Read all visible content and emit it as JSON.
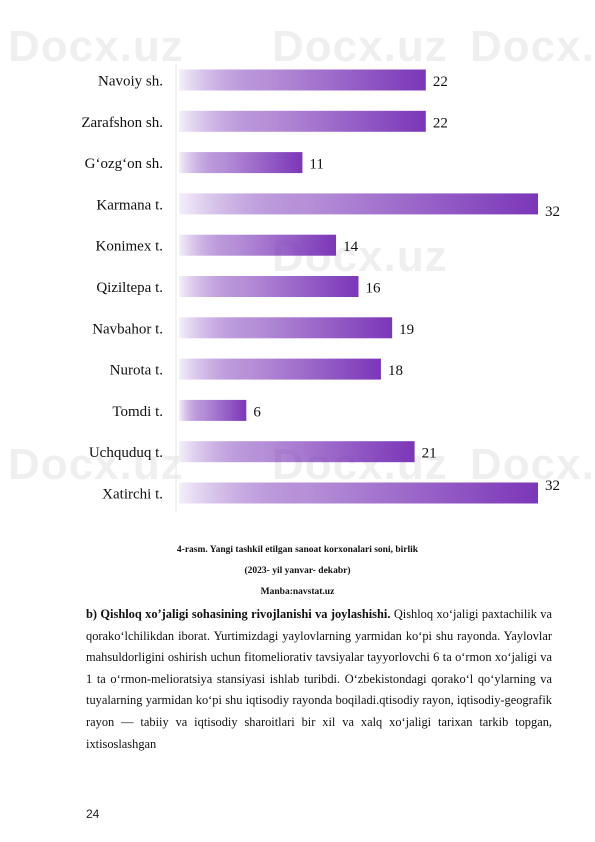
{
  "chart_data": {
    "type": "bar",
    "orientation": "horizontal",
    "categories": [
      "Navoiy sh.",
      "Zarafshon sh.",
      "G‘ozg‘on sh.",
      "Karmana t.",
      "Konimex t.",
      "Qiziltepa t.",
      "Navbahor t.",
      "Nurota t.",
      "Tomdi t.",
      "Uchquduq t.",
      "Xatirchi t."
    ],
    "values": [
      22,
      22,
      11,
      32,
      14,
      16,
      19,
      18,
      6,
      21,
      32
    ],
    "xlim": [
      0,
      32
    ],
    "grid": false,
    "bar_color": "#7b36b8",
    "bar_color_light": "#f4effa"
  },
  "figure": {
    "caption_line1": "4-rasm. Yangi tashkil etilgan sanoat korxonalari soni, birlik",
    "caption_line2": "(2023- yil yanvar- dekabr)",
    "source": "Manba:navstat.uz"
  },
  "body": {
    "heading": "b)  Qishloq  xo’jaligi  sohasining  rivojlanishi  va  joylashishi.",
    "text": " Qishloq xo‘jaligi paxtachilik va qorako‘lchilikdan iborat. Yurtimizdagi yaylovlarning yarmidan ko‘pi shu rayonda. Yaylovlar mahsuldorligini oshirish uchun fitomeliorativ tavsiyalar tayyorlovchi 6 ta o‘rmon xo‘jaligi va 1 ta o‘rmon-melioratsiya stansiyasi ishlab turibdi. O‘zbekistondagi qorako‘l qo‘ylarning va tuyalarning yarmidan ko‘pi shu iqtisodiy rayonda boqiladi.qtisodiy rayon, iqtisodiy-geografik rayon — tabiiy va iqtisodiy sharoitlari bir xil va xalq xo‘jaligi tarixan tarkib topgan, ixtisoslashgan"
  },
  "page_number": "24",
  "watermark": "Docx.uz"
}
